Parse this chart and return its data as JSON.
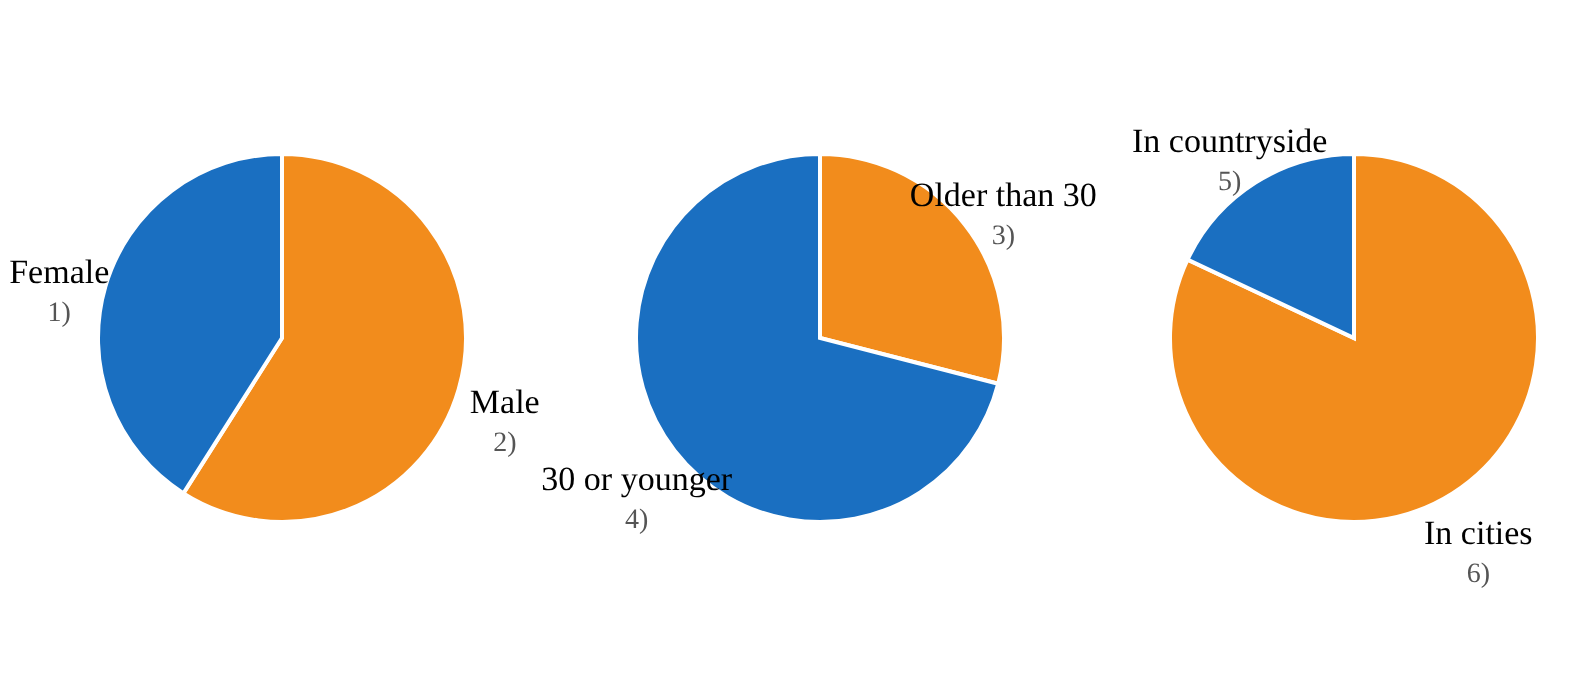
{
  "chart_data": [
    {
      "type": "pie",
      "categories": [
        "Male",
        "Female"
      ],
      "values": [
        59,
        41
      ],
      "colors": [
        "#f28c1c",
        "#1a6fc1"
      ],
      "annotations": [
        "2)",
        "1)"
      ]
    },
    {
      "type": "pie",
      "categories": [
        "Older than 30",
        "30 or younger"
      ],
      "values": [
        29,
        71
      ],
      "colors": [
        "#f28c1c",
        "#1a6fc1"
      ],
      "annotations": [
        "3)",
        "4)"
      ]
    },
    {
      "type": "pie",
      "categories": [
        "In cities",
        "In countryside"
      ],
      "values": [
        82,
        18
      ],
      "colors": [
        "#f28c1c",
        "#1a6fc1"
      ],
      "annotations": [
        "6)",
        "5)"
      ]
    }
  ]
}
